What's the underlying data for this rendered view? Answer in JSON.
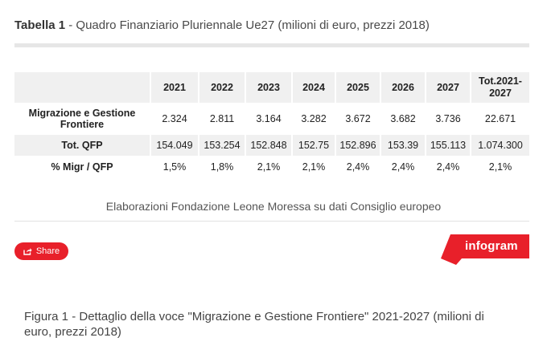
{
  "header": {
    "table_label": "Tabella 1",
    "title_rest": " - Quadro Finanziario Pluriennale Ue27 (milioni di euro, prezzi 2018)"
  },
  "table": {
    "columns": [
      "",
      "2021",
      "2022",
      "2023",
      "2024",
      "2025",
      "2026",
      "2027",
      "Tot.2021-\n2027"
    ],
    "rows": [
      {
        "label": "Migrazione e Gestione Frontiere",
        "values": [
          "2.324",
          "2.811",
          "3.164",
          "3.282",
          "3.672",
          "3.682",
          "3.736",
          "22.671"
        ]
      },
      {
        "label": "Tot. QFP",
        "values": [
          "154.049",
          "153.254",
          "152.848",
          "152.75",
          "152.896",
          "153.39",
          "155.113",
          "1.074.300"
        ]
      },
      {
        "label": "% Migr / QFP",
        "values": [
          "1,5%",
          "1,8%",
          "2,1%",
          "2,1%",
          "2,4%",
          "2,4%",
          "2,4%",
          "2,1%"
        ]
      }
    ]
  },
  "source": "Elaborazioni Fondazione Leone Moressa su dati Consiglio europeo",
  "share": {
    "label": "Share",
    "icon": "share-icon",
    "color": "#e8202a"
  },
  "brand": {
    "label": "infogram",
    "color": "#e8202a"
  },
  "caption": "Figura 1 - Dettaglio della voce \"Migrazione e Gestione Frontiere\" 2021-2027 (milioni di euro, prezzi 2018)"
}
